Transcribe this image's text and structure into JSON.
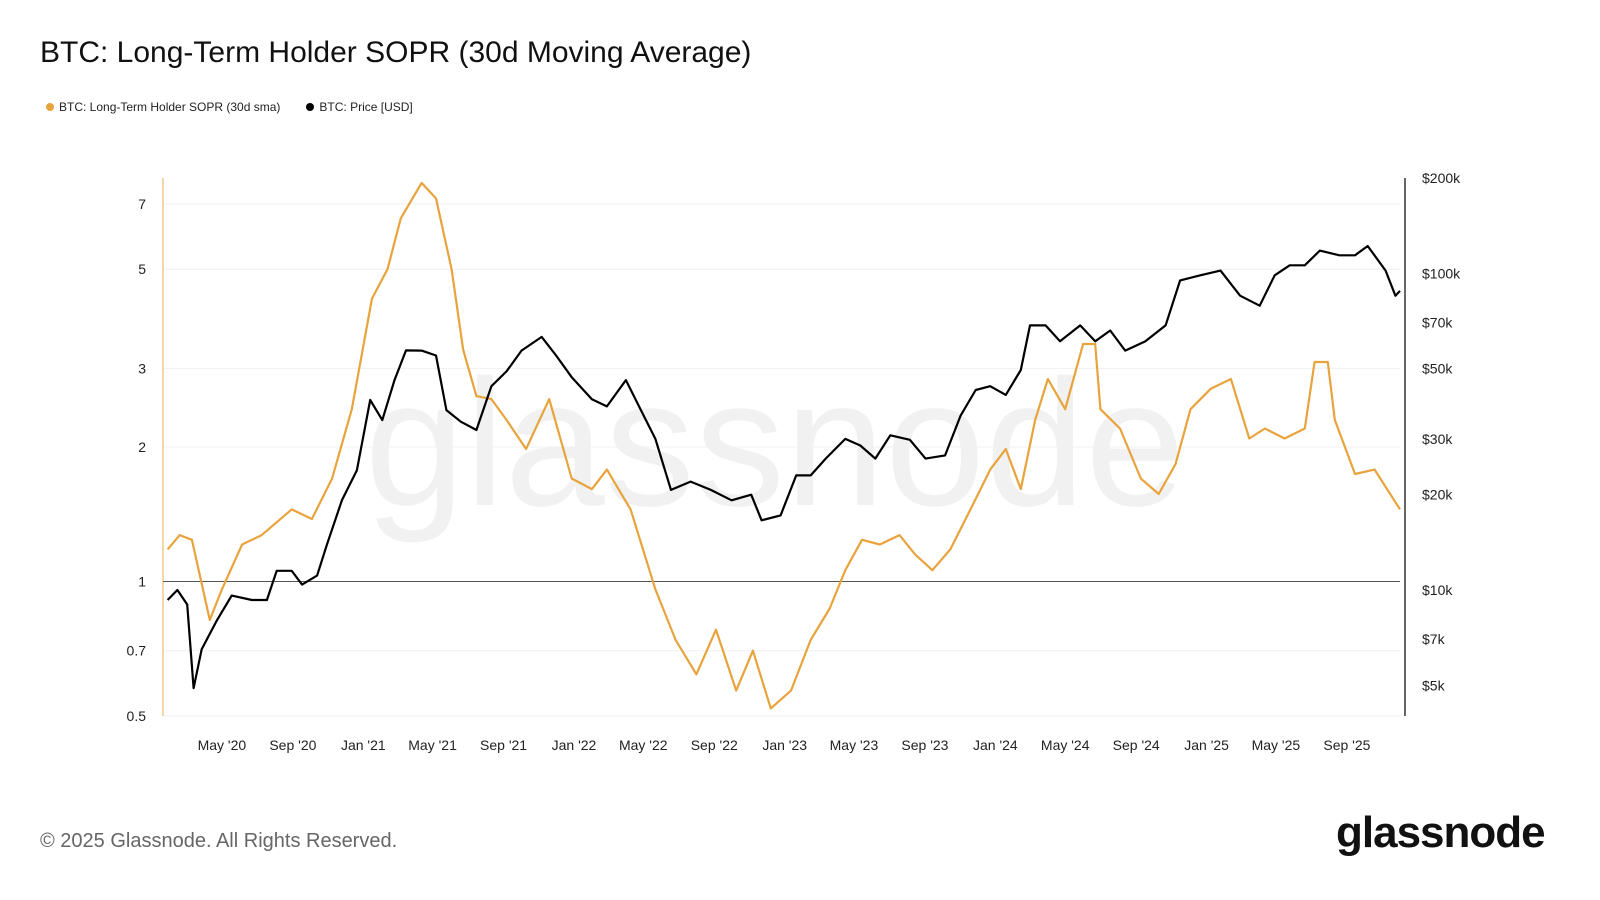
{
  "title": "BTC: Long-Term Holder SOPR (30d Moving Average)",
  "footer": "© 2025 Glassnode. All Rights Reserved.",
  "logo": "glassnode",
  "watermark": "glassnode",
  "colors": {
    "sopr": "#e8a33d",
    "price": "#000000",
    "one_line": "#555555"
  },
  "chart_data": {
    "type": "line",
    "title": "BTC: Long-Term Holder SOPR (30d Moving Average)",
    "legend_position": "top-left",
    "grid": true,
    "x_range": [
      "2020-01-20",
      "2025-12-02"
    ],
    "x_ticks": [
      {
        "date": "2020-05-01",
        "label": "May '20"
      },
      {
        "date": "2020-09-01",
        "label": "Sep '20"
      },
      {
        "date": "2021-01-01",
        "label": "Jan '21"
      },
      {
        "date": "2021-05-01",
        "label": "May '21"
      },
      {
        "date": "2021-09-01",
        "label": "Sep '21"
      },
      {
        "date": "2022-01-01",
        "label": "Jan '22"
      },
      {
        "date": "2022-05-01",
        "label": "May '22"
      },
      {
        "date": "2022-09-01",
        "label": "Sep '22"
      },
      {
        "date": "2023-01-01",
        "label": "Jan '23"
      },
      {
        "date": "2023-05-01",
        "label": "May '23"
      },
      {
        "date": "2023-09-01",
        "label": "Sep '23"
      },
      {
        "date": "2024-01-01",
        "label": "Jan '24"
      },
      {
        "date": "2024-05-01",
        "label": "May '24"
      },
      {
        "date": "2024-09-01",
        "label": "Sep '24"
      },
      {
        "date": "2025-01-01",
        "label": "Jan '25"
      },
      {
        "date": "2025-05-01",
        "label": "May '25"
      },
      {
        "date": "2025-09-01",
        "label": "Sep '25"
      }
    ],
    "y_left": {
      "scale": "log",
      "range": [
        0.5,
        8
      ],
      "ticks": [
        {
          "v": 0.5,
          "label": "0.5"
        },
        {
          "v": 0.7,
          "label": "0.7"
        },
        {
          "v": 1,
          "label": "1"
        },
        {
          "v": 2,
          "label": "2"
        },
        {
          "v": 3,
          "label": "3"
        },
        {
          "v": 5,
          "label": "5"
        },
        {
          "v": 7,
          "label": "7"
        }
      ]
    },
    "y_right": {
      "scale": "log",
      "range": [
        4000,
        200000
      ],
      "ticks": [
        {
          "v": 5000,
          "label": "$5k"
        },
        {
          "v": 7000,
          "label": "$7k"
        },
        {
          "v": 10000,
          "label": "$10k"
        },
        {
          "v": 20000,
          "label": "$20k"
        },
        {
          "v": 30000,
          "label": "$30k"
        },
        {
          "v": 50000,
          "label": "$50k"
        },
        {
          "v": 70000,
          "label": "$70k"
        },
        {
          "v": 100000,
          "label": "$100k"
        },
        {
          "v": 200000,
          "label": "$200k"
        }
      ]
    },
    "reference_line": 1,
    "series": [
      {
        "name": "BTC: Long-Term Holder SOPR (30d sma)",
        "axis": "left",
        "points": [
          [
            "2020-01-28",
            1.18
          ],
          [
            "2020-02-18",
            1.27
          ],
          [
            "2020-03-10",
            1.24
          ],
          [
            "2020-04-10",
            0.82
          ],
          [
            "2020-05-01",
            0.96
          ],
          [
            "2020-06-05",
            1.21
          ],
          [
            "2020-07-09",
            1.27
          ],
          [
            "2020-08-30",
            1.45
          ],
          [
            "2020-10-04",
            1.38
          ],
          [
            "2020-11-08",
            1.7
          ],
          [
            "2020-12-12",
            2.43
          ],
          [
            "2021-01-16",
            4.3
          ],
          [
            "2021-02-12",
            5.0
          ],
          [
            "2021-03-07",
            6.5
          ],
          [
            "2021-04-12",
            7.8
          ],
          [
            "2021-05-07",
            7.2
          ],
          [
            "2021-06-03",
            5.0
          ],
          [
            "2021-06-23",
            3.3
          ],
          [
            "2021-07-16",
            2.6
          ],
          [
            "2021-08-11",
            2.56
          ],
          [
            "2021-09-06",
            2.3
          ],
          [
            "2021-10-10",
            1.98
          ],
          [
            "2021-11-19",
            2.56
          ],
          [
            "2021-12-28",
            1.7
          ],
          [
            "2022-02-01",
            1.61
          ],
          [
            "2022-02-27",
            1.78
          ],
          [
            "2022-04-09",
            1.45
          ],
          [
            "2022-05-22",
            0.96
          ],
          [
            "2022-06-26",
            0.74
          ],
          [
            "2022-08-01",
            0.62
          ],
          [
            "2022-09-04",
            0.78
          ],
          [
            "2022-10-09",
            0.57
          ],
          [
            "2022-11-07",
            0.7
          ],
          [
            "2022-12-08",
            0.52
          ],
          [
            "2023-01-12",
            0.57
          ],
          [
            "2023-02-15",
            0.74
          ],
          [
            "2023-03-20",
            0.87
          ],
          [
            "2023-04-16",
            1.06
          ],
          [
            "2023-05-15",
            1.24
          ],
          [
            "2023-06-15",
            1.21
          ],
          [
            "2023-07-19",
            1.27
          ],
          [
            "2023-08-15",
            1.15
          ],
          [
            "2023-09-14",
            1.06
          ],
          [
            "2023-10-15",
            1.18
          ],
          [
            "2023-11-19",
            1.45
          ],
          [
            "2023-12-23",
            1.78
          ],
          [
            "2024-01-19",
            1.98
          ],
          [
            "2024-02-14",
            1.61
          ],
          [
            "2024-03-10",
            2.3
          ],
          [
            "2024-04-01",
            2.84
          ],
          [
            "2024-05-01",
            2.43
          ],
          [
            "2024-06-01",
            3.4
          ],
          [
            "2024-06-22",
            3.4
          ],
          [
            "2024-07-01",
            2.43
          ],
          [
            "2024-08-04",
            2.2
          ],
          [
            "2024-09-09",
            1.7
          ],
          [
            "2024-10-10",
            1.57
          ],
          [
            "2024-11-08",
            1.83
          ],
          [
            "2024-12-04",
            2.43
          ],
          [
            "2025-01-08",
            2.7
          ],
          [
            "2025-02-12",
            2.84
          ],
          [
            "2025-03-16",
            2.09
          ],
          [
            "2025-04-12",
            2.2
          ],
          [
            "2025-05-16",
            2.09
          ],
          [
            "2025-06-20",
            2.2
          ],
          [
            "2025-07-07",
            3.1
          ],
          [
            "2025-07-30",
            3.1
          ],
          [
            "2025-08-11",
            2.3
          ],
          [
            "2025-09-15",
            1.74
          ],
          [
            "2025-10-19",
            1.78
          ],
          [
            "2025-12-02",
            1.45
          ]
        ]
      },
      {
        "name": "BTC: Price [USD]",
        "axis": "right",
        "points": [
          [
            "2020-01-28",
            9300
          ],
          [
            "2020-02-14",
            10000
          ],
          [
            "2020-03-02",
            9000
          ],
          [
            "2020-03-13",
            4900
          ],
          [
            "2020-03-27",
            6500
          ],
          [
            "2020-04-22",
            8000
          ],
          [
            "2020-05-18",
            9600
          ],
          [
            "2020-06-22",
            9300
          ],
          [
            "2020-07-18",
            9300
          ],
          [
            "2020-08-04",
            11500
          ],
          [
            "2020-08-30",
            11500
          ],
          [
            "2020-09-17",
            10400
          ],
          [
            "2020-10-13",
            11100
          ],
          [
            "2020-10-30",
            13900
          ],
          [
            "2020-11-25",
            19200
          ],
          [
            "2020-12-21",
            23900
          ],
          [
            "2021-01-13",
            39800
          ],
          [
            "2021-02-03",
            34400
          ],
          [
            "2021-02-24",
            46000
          ],
          [
            "2021-03-16",
            57100
          ],
          [
            "2021-04-12",
            57000
          ],
          [
            "2021-05-07",
            55000
          ],
          [
            "2021-05-25",
            37000
          ],
          [
            "2021-06-19",
            34000
          ],
          [
            "2021-07-16",
            32000
          ],
          [
            "2021-08-11",
            44000
          ],
          [
            "2021-09-06",
            49000
          ],
          [
            "2021-10-02",
            57000
          ],
          [
            "2021-11-06",
            63000
          ],
          [
            "2021-12-01",
            55000
          ],
          [
            "2021-12-28",
            47000
          ],
          [
            "2022-02-01",
            40000
          ],
          [
            "2022-02-27",
            38000
          ],
          [
            "2022-04-01",
            46000
          ],
          [
            "2022-04-27",
            37000
          ],
          [
            "2022-05-22",
            30000
          ],
          [
            "2022-06-18",
            20700
          ],
          [
            "2022-07-22",
            22000
          ],
          [
            "2022-08-26",
            20700
          ],
          [
            "2022-10-01",
            19200
          ],
          [
            "2022-11-04",
            20000
          ],
          [
            "2022-11-22",
            16600
          ],
          [
            "2022-12-25",
            17200
          ],
          [
            "2023-01-21",
            23000
          ],
          [
            "2023-02-15",
            23000
          ],
          [
            "2023-03-13",
            26000
          ],
          [
            "2023-04-16",
            30000
          ],
          [
            "2023-05-12",
            28600
          ],
          [
            "2023-06-07",
            26000
          ],
          [
            "2023-07-03",
            30800
          ],
          [
            "2023-08-06",
            29800
          ],
          [
            "2023-09-02",
            26000
          ],
          [
            "2023-10-06",
            26600
          ],
          [
            "2023-11-02",
            35600
          ],
          [
            "2023-11-28",
            42800
          ],
          [
            "2023-12-23",
            44000
          ],
          [
            "2024-01-19",
            41300
          ],
          [
            "2024-02-14",
            49500
          ],
          [
            "2024-03-01",
            68500
          ],
          [
            "2024-03-28",
            68500
          ],
          [
            "2024-04-22",
            61000
          ],
          [
            "2024-05-27",
            68500
          ],
          [
            "2024-06-22",
            61000
          ],
          [
            "2024-07-18",
            66000
          ],
          [
            "2024-08-13",
            57000
          ],
          [
            "2024-09-17",
            61000
          ],
          [
            "2024-10-22",
            68500
          ],
          [
            "2024-11-16",
            95000
          ],
          [
            "2024-12-21",
            98600
          ],
          [
            "2025-01-25",
            102000
          ],
          [
            "2025-02-28",
            85000
          ],
          [
            "2025-04-03",
            79000
          ],
          [
            "2025-04-29",
            98600
          ],
          [
            "2025-05-25",
            106000
          ],
          [
            "2025-06-20",
            106000
          ],
          [
            "2025-07-16",
            118000
          ],
          [
            "2025-08-19",
            114000
          ],
          [
            "2025-09-15",
            114000
          ],
          [
            "2025-10-07",
            122000
          ],
          [
            "2025-11-07",
            102000
          ],
          [
            "2025-11-24",
            85000
          ],
          [
            "2025-12-02",
            88000
          ]
        ]
      }
    ]
  }
}
